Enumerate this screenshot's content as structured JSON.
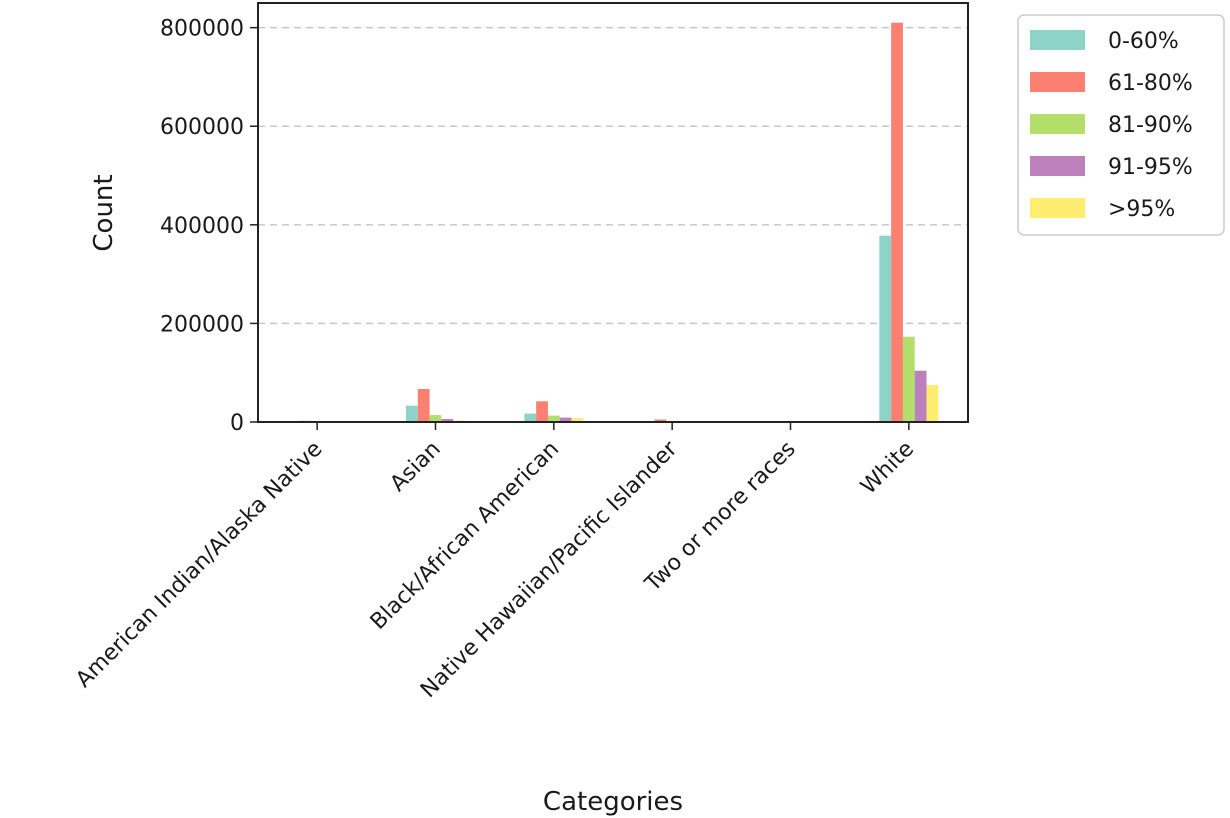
{
  "chart_data": {
    "type": "bar",
    "title": "",
    "xlabel": "Categories",
    "ylabel": "Count",
    "categories": [
      "American Indian/Alaska Native",
      "Asian",
      "Black/African American",
      "Native Hawaiian/Pacific Islander",
      "Two or more races",
      "White"
    ],
    "series": [
      {
        "name": "0-60%",
        "color": "#8dd3c7",
        "values": [
          1500,
          33000,
          17000,
          1200,
          900,
          378000
        ]
      },
      {
        "name": "61-80%",
        "color": "#fb8072",
        "values": [
          2500,
          67000,
          42000,
          5000,
          1500,
          810000
        ]
      },
      {
        "name": "81-90%",
        "color": "#b3de69",
        "values": [
          500,
          14000,
          13000,
          800,
          400,
          173000
        ]
      },
      {
        "name": "91-95%",
        "color": "#bc80bd",
        "values": [
          300,
          6000,
          9000,
          400,
          200,
          104000
        ]
      },
      {
        "name": ">95%",
        "color": "#ffed6f",
        "values": [
          200,
          3000,
          8000,
          300,
          150,
          75000
        ]
      }
    ],
    "ylim": [
      0,
      850000
    ],
    "yticks": [
      0,
      200000,
      400000,
      600000,
      800000
    ],
    "grid": "y-dashed",
    "legend_position": "outside-top-right"
  }
}
